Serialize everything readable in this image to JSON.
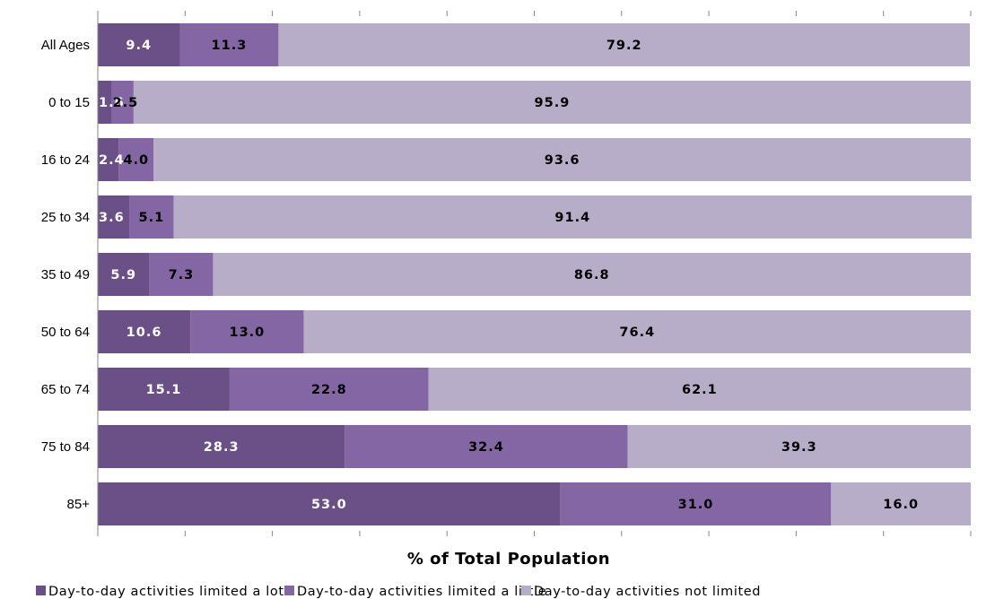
{
  "chart_data": {
    "type": "bar",
    "orientation": "horizontal",
    "stacked": true,
    "xlabel": "% of Total Population",
    "ylabel": "",
    "xlim": [
      0,
      100
    ],
    "grid": false,
    "legend_position": "bottom",
    "categories": [
      "All Ages",
      "0 to 15",
      "16 to 24",
      "25 to 34",
      "35 to 49",
      "50 to 64",
      "65 to 74",
      "75 to 84",
      "85+"
    ],
    "series": [
      {
        "name": "Day-to-day activities limited a lot",
        "color": "#6a5086",
        "label_color": "#ffffff",
        "values": [
          9.4,
          1.6,
          2.4,
          3.6,
          5.9,
          10.6,
          15.1,
          28.3,
          53.0
        ],
        "labels": [
          "9.4",
          "1.6",
          "2.4",
          "3.6",
          "5.9",
          "10.6",
          "15.1",
          "28.3",
          "53.0"
        ]
      },
      {
        "name": "Day-to-day activities limited a little",
        "color": "#8466a4",
        "label_color": "#000000",
        "values": [
          11.3,
          2.5,
          4.0,
          5.1,
          7.3,
          13.0,
          22.8,
          32.4,
          31.0
        ],
        "labels": [
          "11.3",
          "2.5",
          "4.0",
          "5.1",
          "7.3",
          "13.0",
          "22.8",
          "32.4",
          "31.0"
        ]
      },
      {
        "name": "Day-to-day activities not limited",
        "color": "#b8adc9",
        "label_color": "#000000",
        "values": [
          79.2,
          95.9,
          93.6,
          91.4,
          86.8,
          76.4,
          62.1,
          39.3,
          16.0
        ],
        "labels": [
          "79.2",
          "95.9",
          "93.6",
          "91.4",
          "86.8",
          "76.4",
          "62.1",
          "39.3",
          "16.0"
        ]
      }
    ]
  }
}
